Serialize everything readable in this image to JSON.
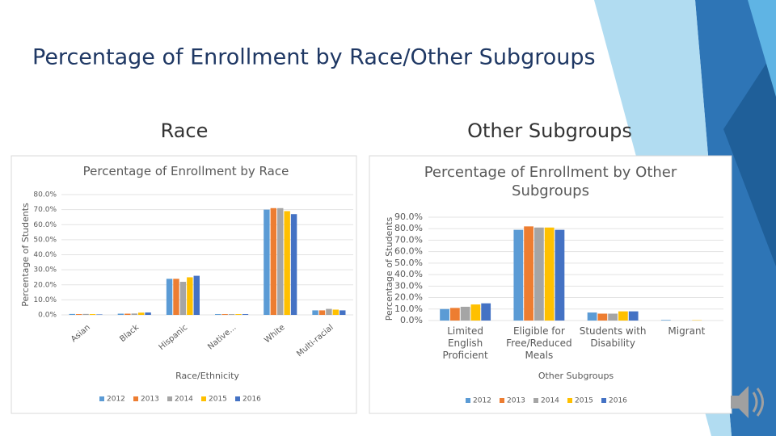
{
  "slide_title": "Percentage of Enrollment by Race/Other Subgroups",
  "headings": [
    "Race",
    "Other Subgroups"
  ],
  "chart_data": [
    {
      "type": "bar",
      "title": "Percentage of Enrollment by Race",
      "y_label": "Percentage of Students",
      "x_label": "Race/Ethnicity",
      "categories": [
        "Asian",
        "Black",
        "Hispanic",
        "Native...",
        "White",
        "Multi-racial"
      ],
      "series": [
        {
          "name": "2012",
          "color": "#5b9bd5",
          "values": [
            0.6,
            0.8,
            24,
            0.5,
            70,
            3
          ]
        },
        {
          "name": "2013",
          "color": "#ed7d31",
          "values": [
            0.5,
            0.8,
            24,
            0.5,
            71,
            3
          ]
        },
        {
          "name": "2014",
          "color": "#a5a5a5",
          "values": [
            0.6,
            0.9,
            22,
            0.5,
            71,
            4
          ]
        },
        {
          "name": "2015",
          "color": "#ffc000",
          "values": [
            0.5,
            1.5,
            25,
            0.5,
            69,
            3.5
          ]
        },
        {
          "name": "2016",
          "color": "#4472c4",
          "values": [
            0.3,
            1.6,
            26,
            0.5,
            67,
            3
          ]
        }
      ],
      "ylim": [
        0,
        80
      ],
      "yticks": [
        {
          "value": 0,
          "label": "0.0%"
        },
        {
          "value": 10,
          "label": "10.0%"
        },
        {
          "value": 20,
          "label": "20.0%"
        },
        {
          "value": 30,
          "label": "30.0%"
        },
        {
          "value": 40,
          "label": "40.0%"
        },
        {
          "value": 50,
          "label": "50.0%"
        },
        {
          "value": 60,
          "label": "60.0%"
        },
        {
          "value": 70,
          "label": "70.0%"
        },
        {
          "value": 80,
          "label": "80.0%"
        }
      ],
      "legend": "bottom"
    },
    {
      "type": "bar",
      "title": "Percentage of Enrollment by Other Subgroups",
      "y_label": "Percentage of Students",
      "x_label": "Other Subgroups",
      "categories": [
        "Limited English Proficient",
        "Eligible for Free/Reduced Meals",
        "Students with Disability",
        "Migrant"
      ],
      "series": [
        {
          "name": "2012",
          "color": "#5b9bd5",
          "values": [
            10,
            79,
            7,
            0.5
          ]
        },
        {
          "name": "2013",
          "color": "#ed7d31",
          "values": [
            11,
            82,
            6,
            0
          ]
        },
        {
          "name": "2014",
          "color": "#a5a5a5",
          "values": [
            12,
            81,
            6,
            0
          ]
        },
        {
          "name": "2015",
          "color": "#ffc000",
          "values": [
            14,
            81,
            8,
            0.3
          ]
        },
        {
          "name": "2016",
          "color": "#4472c4",
          "values": [
            15,
            79,
            8,
            0
          ]
        }
      ],
      "ylim": [
        0,
        90
      ],
      "yticks": [
        {
          "value": 0,
          "label": "0.0%"
        },
        {
          "value": 10,
          "label": "10.0%"
        },
        {
          "value": 20,
          "label": "20.0%"
        },
        {
          "value": 30,
          "label": "30.0%"
        },
        {
          "value": 40,
          "label": "40.0%"
        },
        {
          "value": 50,
          "label": "50.0%"
        },
        {
          "value": 60,
          "label": "60.0%"
        },
        {
          "value": 70,
          "label": "70.0%"
        },
        {
          "value": 80,
          "label": "80.0%"
        },
        {
          "value": 90,
          "label": "90.0%"
        }
      ],
      "legend": "bottom"
    }
  ]
}
